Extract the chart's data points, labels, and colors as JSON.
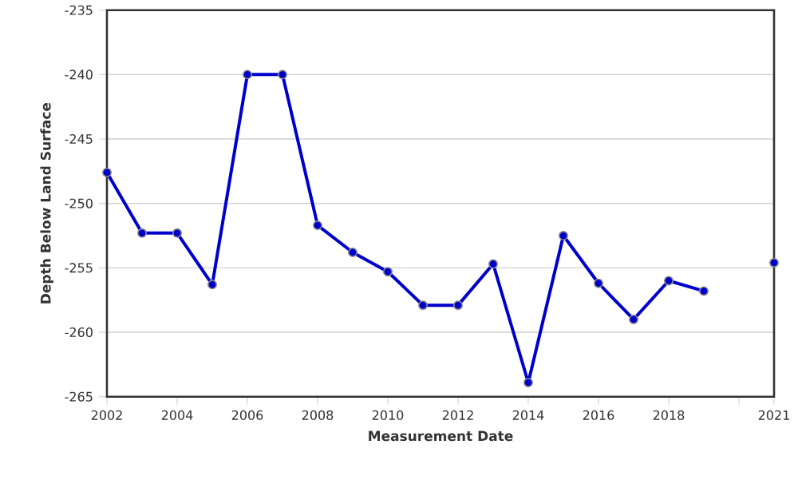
{
  "chart_data": {
    "type": "line",
    "xlabel": "Measurement Date",
    "ylabel": "Depth Below Land Surface",
    "x": [
      2002,
      2003,
      2004,
      2005,
      2006,
      2007,
      2008,
      2009,
      2010,
      2011,
      2012,
      2013,
      2014,
      2015,
      2016,
      2017,
      2018,
      2019,
      2020,
      2021
    ],
    "series": [
      {
        "color": "#0000cc",
        "values": [
          -247.6,
          -252.3,
          -252.3,
          -256.3,
          -240,
          -240,
          -251.7,
          -253.8,
          -255.3,
          -257.9,
          -257.9,
          -254.7,
          -263.9,
          -252.5,
          -256.2,
          -259.0,
          -256.0,
          -256.8,
          null,
          -254.6
        ]
      }
    ],
    "xlim": [
      2002,
      2021
    ],
    "ylim": [
      -265,
      -235
    ],
    "xticks": [
      2002,
      2004,
      2006,
      2008,
      2010,
      2012,
      2014,
      2016,
      2018,
      {
        "value": 2020,
        "label": null
      },
      2021
    ],
    "yticks": [
      -265,
      -260,
      -255,
      -250,
      -245,
      -240,
      -235
    ],
    "grid": "y",
    "marker": "circle",
    "line_style": "solid"
  }
}
